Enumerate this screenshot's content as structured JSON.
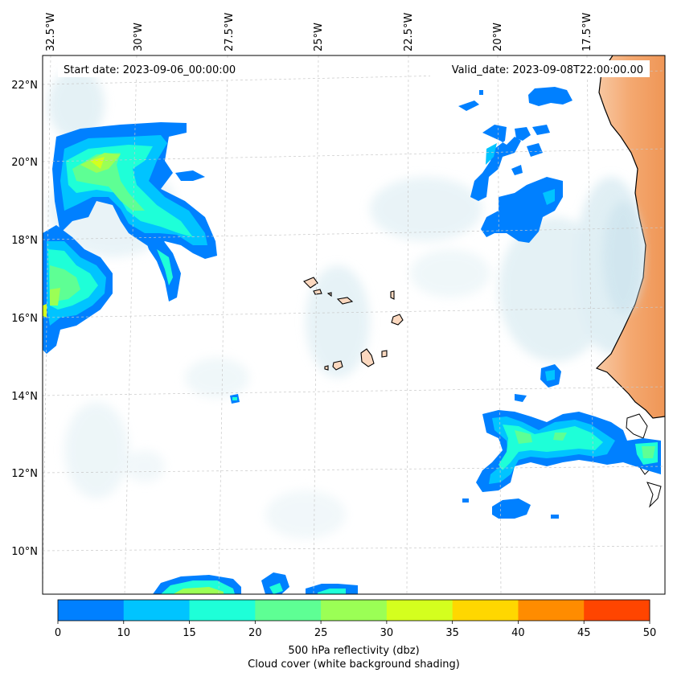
{
  "header": {
    "start_date": "Start date: 2023-09-06_00:00:00",
    "valid_date": "Valid_date: 2023-09-08T22:00:00.00"
  },
  "longitude_labels": [
    "32.5°W",
    "30°W",
    "27.5°W",
    "25°W",
    "22.5°W",
    "20°W",
    "17.5°W"
  ],
  "latitude_labels": [
    "22°N",
    "20°N",
    "18°N",
    "16°N",
    "14°N",
    "12°N",
    "10°N"
  ],
  "colorbar": {
    "ticks": [
      "0",
      "10",
      "15",
      "20",
      "25",
      "30",
      "35",
      "40",
      "45",
      "50"
    ],
    "colors": [
      "#0080ff",
      "#00c4ff",
      "#1effd8",
      "#5eff94",
      "#9bff55",
      "#d4ff1e",
      "#ffd700",
      "#ff8c00",
      "#ff4500"
    ],
    "label_line1": "500 hPa reflectivity (dbz)",
    "label_line2": "Cloud cover (white background shading)"
  },
  "map_colors": {
    "land": "#f4a870",
    "island": "#fbd8bf",
    "cloud": "#cfe6ee",
    "coast": "#000000",
    "grid": "#c8c8c8"
  }
}
